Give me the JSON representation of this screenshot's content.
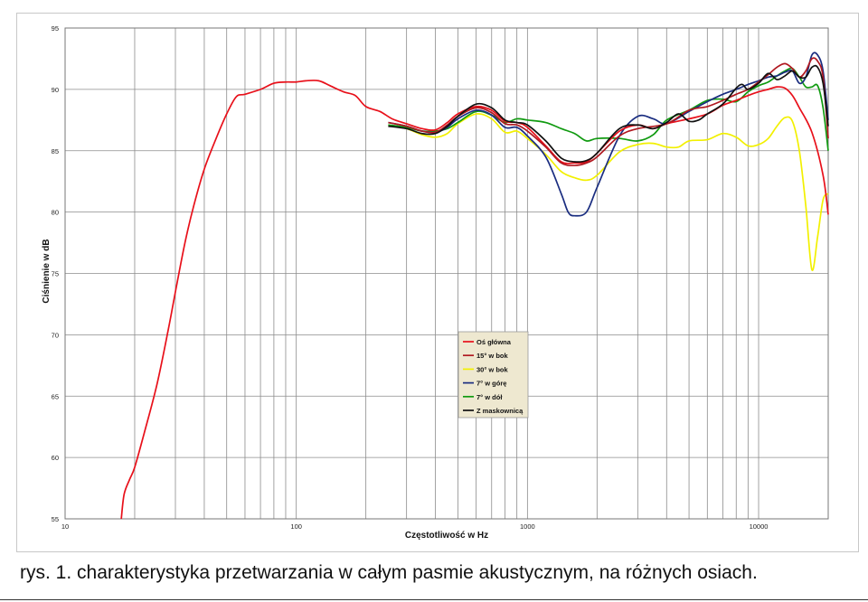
{
  "caption": "rys. 1. charakterystyka przetwarzania w całym pasmie akustycznym, na różnych osiach.",
  "chart_data": {
    "type": "line",
    "title": "",
    "xlabel": "Częstotliwość w Hz",
    "ylabel": "Ciśnienie w dB",
    "xscale": "log",
    "xlim": [
      10,
      20000
    ],
    "ylim": [
      55,
      95
    ],
    "x_ticks": [
      10,
      100,
      1000,
      10000
    ],
    "x_tick_labels": [
      "10",
      "100",
      "1000",
      "10000"
    ],
    "y_ticks": [
      55,
      60,
      65,
      70,
      75,
      80,
      85,
      90,
      95
    ],
    "y_tick_labels": [
      "55",
      "60",
      "65",
      "70",
      "75",
      "80",
      "85",
      "90",
      "95"
    ],
    "grid": true,
    "legend_position": "center-right",
    "legend_background": "#eee8d0",
    "series": [
      {
        "name": "Oś główna",
        "color": "#e8101a",
        "points": [
          [
            17.5,
            55
          ],
          [
            18,
            57
          ],
          [
            19,
            58.2
          ],
          [
            20,
            59.2
          ],
          [
            22,
            62
          ],
          [
            25,
            66
          ],
          [
            28,
            70.5
          ],
          [
            30,
            73.5
          ],
          [
            33,
            77.5
          ],
          [
            36,
            80.5
          ],
          [
            40,
            83.5
          ],
          [
            45,
            86
          ],
          [
            50,
            88
          ],
          [
            55,
            89.4
          ],
          [
            60,
            89.6
          ],
          [
            70,
            90
          ],
          [
            80,
            90.5
          ],
          [
            90,
            90.6
          ],
          [
            100,
            90.6
          ],
          [
            110,
            90.7
          ],
          [
            125,
            90.7
          ],
          [
            140,
            90.3
          ],
          [
            160,
            89.8
          ],
          [
            180,
            89.5
          ],
          [
            200,
            88.6
          ],
          [
            230,
            88.2
          ],
          [
            260,
            87.6
          ],
          [
            300,
            87.2
          ],
          [
            350,
            86.8
          ],
          [
            400,
            86.7
          ],
          [
            450,
            87.3
          ],
          [
            500,
            88
          ],
          [
            600,
            88.6
          ],
          [
            700,
            88.3
          ],
          [
            800,
            87.4
          ],
          [
            900,
            87.3
          ],
          [
            1000,
            86.9
          ],
          [
            1200,
            85.4
          ],
          [
            1400,
            84.1
          ],
          [
            1600,
            84
          ],
          [
            1800,
            84.1
          ],
          [
            2000,
            84.8
          ],
          [
            2500,
            86.6
          ],
          [
            3000,
            87.1
          ],
          [
            3500,
            86.8
          ],
          [
            4000,
            87.2
          ],
          [
            5000,
            87.6
          ],
          [
            6000,
            88
          ],
          [
            7000,
            88.7
          ],
          [
            8000,
            89.1
          ],
          [
            9000,
            89.5
          ],
          [
            10000,
            89.8
          ],
          [
            11000,
            90
          ],
          [
            12000,
            90.2
          ],
          [
            13000,
            90.1
          ],
          [
            14000,
            89.5
          ],
          [
            15000,
            88.5
          ],
          [
            17000,
            86.5
          ],
          [
            19000,
            83
          ],
          [
            20000,
            79.8
          ]
        ]
      },
      {
        "name": "15° w bok",
        "color": "#b01820",
        "points": [
          [
            250,
            87.3
          ],
          [
            300,
            87
          ],
          [
            350,
            86.6
          ],
          [
            400,
            86.5
          ],
          [
            450,
            87.1
          ],
          [
            500,
            87.8
          ],
          [
            600,
            88.5
          ],
          [
            700,
            88.1
          ],
          [
            800,
            87.2
          ],
          [
            900,
            87.1
          ],
          [
            1000,
            86.6
          ],
          [
            1200,
            85.3
          ],
          [
            1400,
            84
          ],
          [
            1600,
            83.8
          ],
          [
            1800,
            84
          ],
          [
            2000,
            84.5
          ],
          [
            2500,
            86.2
          ],
          [
            3000,
            86.8
          ],
          [
            4000,
            87.2
          ],
          [
            5000,
            88.3
          ],
          [
            6000,
            88.6
          ],
          [
            7000,
            89.1
          ],
          [
            8000,
            89.6
          ],
          [
            9000,
            90
          ],
          [
            10000,
            90.6
          ],
          [
            11000,
            91.2
          ],
          [
            12000,
            91.8
          ],
          [
            13000,
            92.1
          ],
          [
            14000,
            91.7
          ],
          [
            15000,
            91
          ],
          [
            16000,
            91.5
          ],
          [
            17000,
            92.5
          ],
          [
            18000,
            92.3
          ],
          [
            19000,
            91
          ],
          [
            20000,
            86
          ]
        ]
      },
      {
        "name": "30° w bok",
        "color": "#f2f000",
        "points": [
          [
            250,
            87.1
          ],
          [
            300,
            86.8
          ],
          [
            350,
            86.3
          ],
          [
            400,
            86.1
          ],
          [
            450,
            86.4
          ],
          [
            500,
            87.2
          ],
          [
            600,
            88
          ],
          [
            700,
            87.6
          ],
          [
            800,
            86.5
          ],
          [
            900,
            86.6
          ],
          [
            1000,
            86
          ],
          [
            1200,
            84.7
          ],
          [
            1400,
            83.3
          ],
          [
            1600,
            82.8
          ],
          [
            1800,
            82.6
          ],
          [
            2000,
            83
          ],
          [
            2500,
            84.9
          ],
          [
            3000,
            85.5
          ],
          [
            3500,
            85.6
          ],
          [
            4000,
            85.3
          ],
          [
            4500,
            85.3
          ],
          [
            5000,
            85.8
          ],
          [
            6000,
            85.9
          ],
          [
            7000,
            86.4
          ],
          [
            8000,
            86.1
          ],
          [
            9000,
            85.4
          ],
          [
            10000,
            85.5
          ],
          [
            11000,
            86
          ],
          [
            12000,
            87
          ],
          [
            13000,
            87.7
          ],
          [
            14000,
            87.4
          ],
          [
            15000,
            85
          ],
          [
            16000,
            80.5
          ],
          [
            17000,
            75.3
          ],
          [
            18000,
            78
          ],
          [
            19000,
            81
          ],
          [
            20000,
            81.5
          ]
        ]
      },
      {
        "name": "7° w górę",
        "color": "#1a2d80",
        "points": [
          [
            250,
            87.3
          ],
          [
            300,
            87
          ],
          [
            350,
            86.6
          ],
          [
            400,
            86.5
          ],
          [
            450,
            86.9
          ],
          [
            500,
            87.6
          ],
          [
            600,
            88.3
          ],
          [
            700,
            87.9
          ],
          [
            800,
            86.9
          ],
          [
            900,
            86.9
          ],
          [
            1000,
            86.2
          ],
          [
            1200,
            84.5
          ],
          [
            1400,
            81.5
          ],
          [
            1500,
            80
          ],
          [
            1600,
            79.7
          ],
          [
            1800,
            80
          ],
          [
            2000,
            82
          ],
          [
            2500,
            86.2
          ],
          [
            3000,
            87.8
          ],
          [
            3500,
            87.6
          ],
          [
            4000,
            87.2
          ],
          [
            5000,
            88.2
          ],
          [
            6000,
            89
          ],
          [
            7000,
            89.6
          ],
          [
            8000,
            90
          ],
          [
            9000,
            90.4
          ],
          [
            10000,
            90.7
          ],
          [
            11000,
            91
          ],
          [
            12000,
            91.1
          ],
          [
            13000,
            91.4
          ],
          [
            14000,
            91.5
          ],
          [
            15000,
            90.5
          ],
          [
            16000,
            91
          ],
          [
            17000,
            92.8
          ],
          [
            18000,
            92.8
          ],
          [
            19000,
            91.5
          ],
          [
            20000,
            87.5
          ]
        ]
      },
      {
        "name": "7° w dół",
        "color": "#109a10",
        "points": [
          [
            250,
            87.1
          ],
          [
            300,
            86.9
          ],
          [
            350,
            86.6
          ],
          [
            400,
            86.6
          ],
          [
            450,
            86.8
          ],
          [
            500,
            87.3
          ],
          [
            600,
            88.2
          ],
          [
            700,
            87.9
          ],
          [
            800,
            87.3
          ],
          [
            900,
            87.6
          ],
          [
            1000,
            87.5
          ],
          [
            1200,
            87.3
          ],
          [
            1400,
            86.8
          ],
          [
            1600,
            86.4
          ],
          [
            1800,
            85.8
          ],
          [
            2000,
            86
          ],
          [
            2500,
            86
          ],
          [
            3000,
            85.8
          ],
          [
            3500,
            86.3
          ],
          [
            4000,
            87.5
          ],
          [
            5000,
            88.3
          ],
          [
            6000,
            89.1
          ],
          [
            7000,
            89.2
          ],
          [
            8000,
            89
          ],
          [
            9000,
            89.8
          ],
          [
            10000,
            90.3
          ],
          [
            11000,
            90.6
          ],
          [
            12000,
            91.1
          ],
          [
            13000,
            91.5
          ],
          [
            14000,
            91.7
          ],
          [
            15000,
            91
          ],
          [
            16000,
            90.2
          ],
          [
            17000,
            90.2
          ],
          [
            18000,
            90.3
          ],
          [
            19000,
            88.5
          ],
          [
            20000,
            85
          ]
        ]
      },
      {
        "name": "Z maskownicą",
        "color": "#111111",
        "points": [
          [
            250,
            87
          ],
          [
            300,
            86.8
          ],
          [
            350,
            86.4
          ],
          [
            400,
            86.4
          ],
          [
            450,
            87
          ],
          [
            500,
            87.8
          ],
          [
            600,
            88.8
          ],
          [
            700,
            88.5
          ],
          [
            800,
            87.5
          ],
          [
            900,
            87.3
          ],
          [
            1000,
            87.1
          ],
          [
            1200,
            85.8
          ],
          [
            1400,
            84.4
          ],
          [
            1600,
            84.1
          ],
          [
            1800,
            84.2
          ],
          [
            2000,
            84.8
          ],
          [
            2500,
            86.8
          ],
          [
            3000,
            87.1
          ],
          [
            3500,
            86.8
          ],
          [
            4000,
            87.3
          ],
          [
            4500,
            88
          ],
          [
            5000,
            87.4
          ],
          [
            5500,
            87.5
          ],
          [
            6000,
            88
          ],
          [
            7000,
            88.8
          ],
          [
            8000,
            90.1
          ],
          [
            8500,
            90.4
          ],
          [
            9000,
            90
          ],
          [
            10000,
            90.5
          ],
          [
            11000,
            91.3
          ],
          [
            12000,
            90.8
          ],
          [
            13000,
            91.1
          ],
          [
            14000,
            91.5
          ],
          [
            15000,
            91
          ],
          [
            16000,
            91
          ],
          [
            17000,
            91.8
          ],
          [
            18000,
            91.8
          ],
          [
            19000,
            90.5
          ],
          [
            20000,
            87
          ]
        ]
      }
    ]
  }
}
